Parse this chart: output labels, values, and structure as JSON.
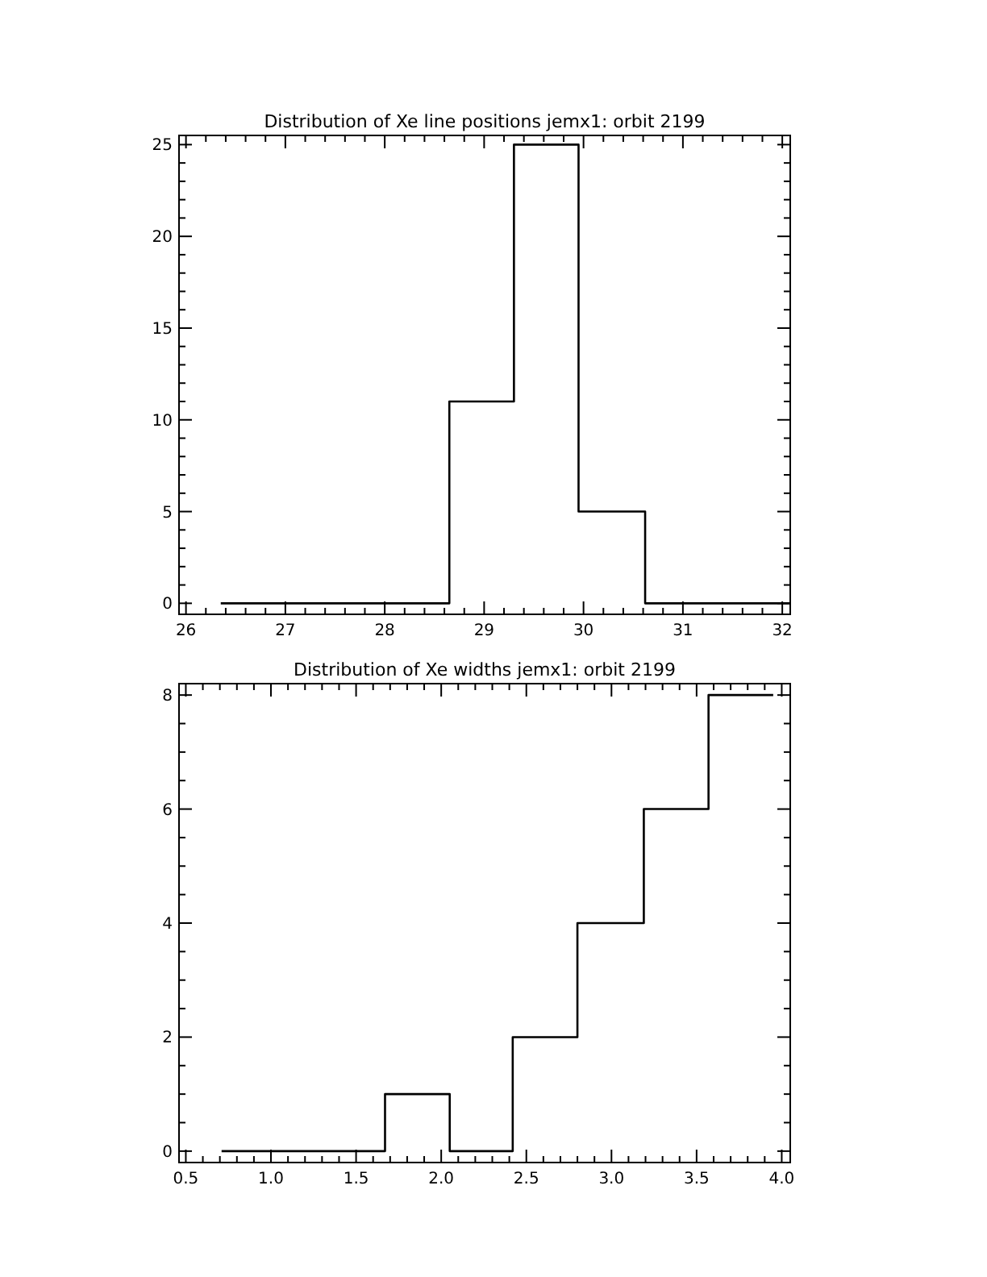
{
  "chart_data": [
    {
      "type": "step",
      "title": "Distribution of Xe line positions jemx1: orbit 2199",
      "x": [
        26.35,
        28.65,
        29.3,
        29.95,
        30.62,
        32.08
      ],
      "values": [
        0,
        11,
        25,
        5,
        0,
        0
      ],
      "color": "#000000",
      "xlim": [
        25.93,
        32.08
      ],
      "ylim": [
        -0.6,
        25.5
      ],
      "xticks": [
        26,
        {
          "value": 26.2,
          "label": null
        },
        {
          "value": 26.4,
          "label": null
        },
        {
          "value": 26.6,
          "label": null
        },
        {
          "value": 26.8,
          "label": null
        },
        27,
        {
          "value": 27.2,
          "label": null
        },
        {
          "value": 27.4,
          "label": null
        },
        {
          "value": 27.6,
          "label": null
        },
        {
          "value": 27.8,
          "label": null
        },
        28,
        {
          "value": 28.2,
          "label": null
        },
        {
          "value": 28.4,
          "label": null
        },
        {
          "value": 28.6,
          "label": null
        },
        {
          "value": 28.8,
          "label": null
        },
        29,
        {
          "value": 29.2,
          "label": null
        },
        {
          "value": 29.4,
          "label": null
        },
        {
          "value": 29.6,
          "label": null
        },
        {
          "value": 29.8,
          "label": null
        },
        30,
        {
          "value": 30.2,
          "label": null
        },
        {
          "value": 30.4,
          "label": null
        },
        {
          "value": 30.6,
          "label": null
        },
        {
          "value": 30.8,
          "label": null
        },
        31,
        {
          "value": 31.2,
          "label": null
        },
        {
          "value": 31.4,
          "label": null
        },
        {
          "value": 31.6,
          "label": null
        },
        {
          "value": 31.8,
          "label": null
        },
        32
      ],
      "yticks": [
        0,
        {
          "value": 1,
          "label": null
        },
        {
          "value": 2,
          "label": null
        },
        {
          "value": 3,
          "label": null
        },
        {
          "value": 4,
          "label": null
        },
        5,
        {
          "value": 6,
          "label": null
        },
        {
          "value": 7,
          "label": null
        },
        {
          "value": 8,
          "label": null
        },
        {
          "value": 9,
          "label": null
        },
        10,
        {
          "value": 11,
          "label": null
        },
        {
          "value": 12,
          "label": null
        },
        {
          "value": 13,
          "label": null
        },
        {
          "value": 14,
          "label": null
        },
        15,
        {
          "value": 16,
          "label": null
        },
        {
          "value": 17,
          "label": null
        },
        {
          "value": 18,
          "label": null
        },
        {
          "value": 19,
          "label": null
        },
        20,
        {
          "value": 21,
          "label": null
        },
        {
          "value": 22,
          "label": null
        },
        {
          "value": 23,
          "label": null
        },
        {
          "value": 24,
          "label": null
        },
        25
      ]
    },
    {
      "type": "step",
      "title": "Distribution of Xe widths jemx1: orbit 2199",
      "x": [
        0.71,
        1.67,
        2.05,
        2.42,
        2.8,
        3.19,
        3.57,
        3.95
      ],
      "values": [
        0,
        1,
        0,
        2,
        4,
        6,
        8,
        8
      ],
      "color": "#000000",
      "xlim": [
        0.46,
        4.05
      ],
      "ylim": [
        -0.2,
        8.2
      ],
      "xticks": [
        {
          "value": 0.5,
          "label": "0.5"
        },
        {
          "value": 0.6,
          "label": null
        },
        {
          "value": 0.7,
          "label": null
        },
        {
          "value": 0.8,
          "label": null
        },
        {
          "value": 0.9,
          "label": null
        },
        {
          "value": 1,
          "label": "1.0"
        },
        {
          "value": 1.1,
          "label": null
        },
        {
          "value": 1.2,
          "label": null
        },
        {
          "value": 1.3,
          "label": null
        },
        {
          "value": 1.4,
          "label": null
        },
        {
          "value": 1.5,
          "label": "1.5"
        },
        {
          "value": 1.6,
          "label": null
        },
        {
          "value": 1.7,
          "label": null
        },
        {
          "value": 1.8,
          "label": null
        },
        {
          "value": 1.9,
          "label": null
        },
        {
          "value": 2,
          "label": "2.0"
        },
        {
          "value": 2.1,
          "label": null
        },
        {
          "value": 2.2,
          "label": null
        },
        {
          "value": 2.3,
          "label": null
        },
        {
          "value": 2.4,
          "label": null
        },
        {
          "value": 2.5,
          "label": "2.5"
        },
        {
          "value": 2.6,
          "label": null
        },
        {
          "value": 2.7,
          "label": null
        },
        {
          "value": 2.8,
          "label": null
        },
        {
          "value": 2.9,
          "label": null
        },
        {
          "value": 3,
          "label": "3.0"
        },
        {
          "value": 3.1,
          "label": null
        },
        {
          "value": 3.2,
          "label": null
        },
        {
          "value": 3.3,
          "label": null
        },
        {
          "value": 3.4,
          "label": null
        },
        {
          "value": 3.5,
          "label": "3.5"
        },
        {
          "value": 3.6,
          "label": null
        },
        {
          "value": 3.7,
          "label": null
        },
        {
          "value": 3.8,
          "label": null
        },
        {
          "value": 3.9,
          "label": null
        },
        {
          "value": 4,
          "label": "4.0"
        }
      ],
      "yticks": [
        0,
        {
          "value": 0.5,
          "label": null
        },
        {
          "value": 1,
          "label": null
        },
        {
          "value": 1.5,
          "label": null
        },
        2,
        {
          "value": 2.5,
          "label": null
        },
        {
          "value": 3,
          "label": null
        },
        {
          "value": 3.5,
          "label": null
        },
        4,
        {
          "value": 4.5,
          "label": null
        },
        {
          "value": 5,
          "label": null
        },
        {
          "value": 5.5,
          "label": null
        },
        6,
        {
          "value": 6.5,
          "label": null
        },
        {
          "value": 7,
          "label": null
        },
        {
          "value": 7.5,
          "label": null
        },
        8
      ]
    }
  ]
}
